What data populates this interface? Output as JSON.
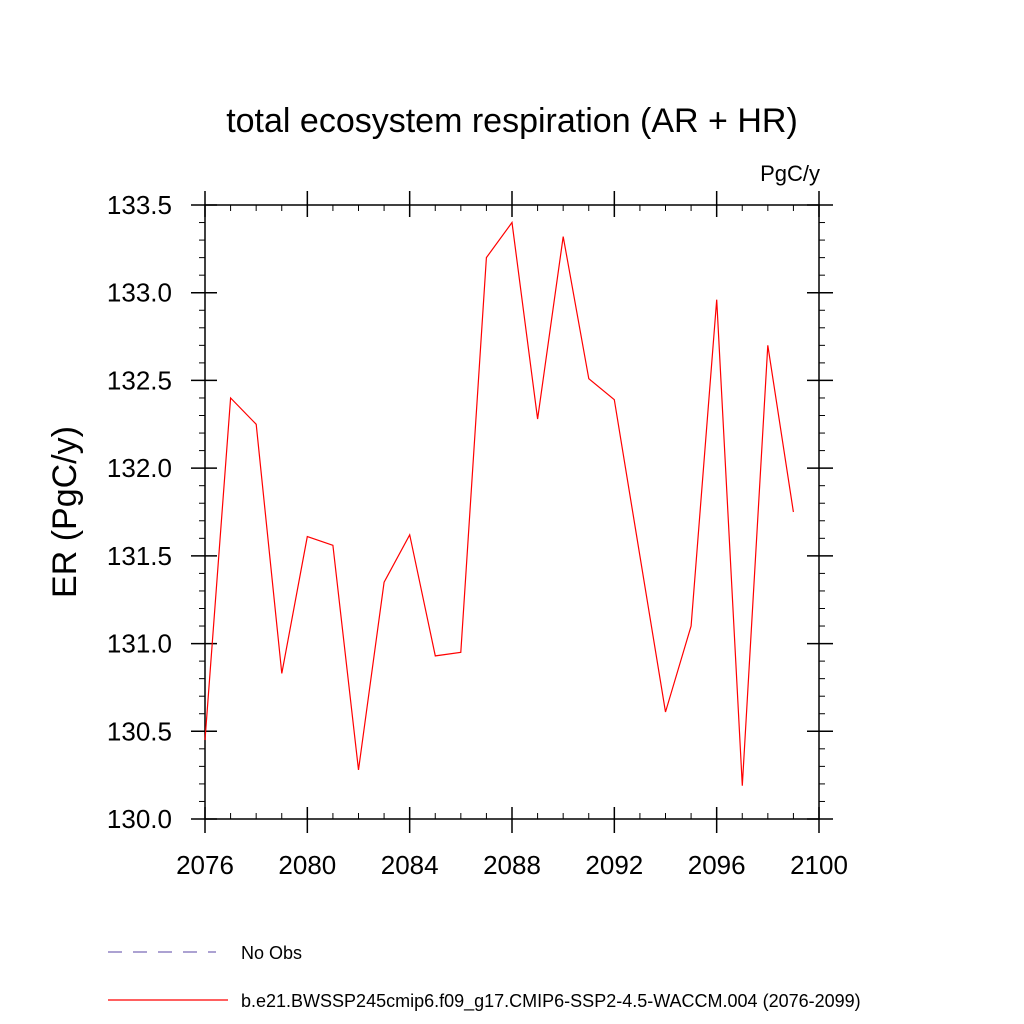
{
  "chart_data": {
    "type": "line",
    "title": "total ecosystem respiration (AR + HR)",
    "units_label": "PgC/y",
    "ylabel": "ER  (PgC/y)",
    "xlabel": "",
    "xlim": [
      2076,
      2100
    ],
    "ylim": [
      130.0,
      133.5
    ],
    "x_ticks": [
      "2076",
      "2080",
      "2084",
      "2088",
      "2092",
      "2096",
      "2100"
    ],
    "y_ticks": [
      "130.0",
      "130.5",
      "131.0",
      "131.5",
      "132.0",
      "132.5",
      "133.0",
      "133.5"
    ],
    "grid": false,
    "legend_position": "bottom-left",
    "series": [
      {
        "name": "b.e21.BWSSP245cmip6.f09_g17.CMIP6-SSP2-4.5-WACCM.004 (2076-2099)",
        "color": "#ff0000",
        "style": "solid",
        "x": [
          2076,
          2077,
          2078,
          2079,
          2080,
          2081,
          2082,
          2083,
          2084,
          2085,
          2086,
          2087,
          2088,
          2089,
          2090,
          2091,
          2092,
          2093,
          2094,
          2095,
          2096,
          2097,
          2098,
          2099
        ],
        "values": [
          130.45,
          132.4,
          132.25,
          130.83,
          131.61,
          131.56,
          130.28,
          131.35,
          131.62,
          130.93,
          130.95,
          133.2,
          133.4,
          132.28,
          133.32,
          132.51,
          132.39,
          131.5,
          130.61,
          131.1,
          132.96,
          130.19,
          132.7,
          131.75
        ]
      }
    ],
    "legend": [
      {
        "label": "No Obs",
        "color": "#7a6bb8",
        "style": "dashed"
      },
      {
        "label": "b.e21.BWSSP245cmip6.f09_g17.CMIP6-SSP2-4.5-WACCM.004 (2076-2099)",
        "color": "#ff0000",
        "style": "solid"
      }
    ]
  }
}
